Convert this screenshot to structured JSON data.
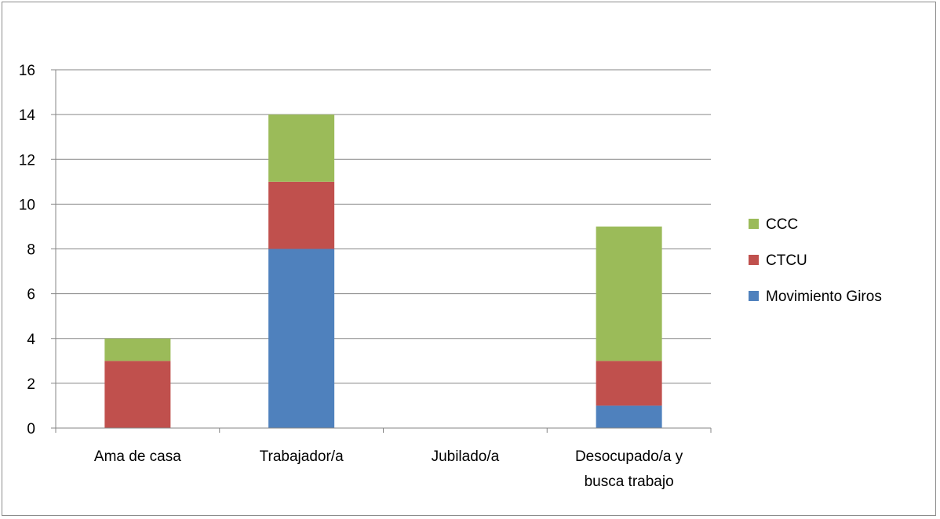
{
  "chart_data": {
    "type": "bar",
    "stacked": true,
    "categories": [
      [
        "Ama de casa"
      ],
      [
        "Trabajador/a"
      ],
      [
        "Jubilado/a"
      ],
      [
        "Desocupado/a y",
        "busca trabajo"
      ]
    ],
    "series": [
      {
        "name": "Movimiento Giros",
        "color": "#4f81bd",
        "values": [
          0,
          8,
          0,
          1
        ]
      },
      {
        "name": "CTCU",
        "color": "#c0504d",
        "values": [
          3,
          3,
          0,
          2
        ]
      },
      {
        "name": "CCC",
        "color": "#9bbb59",
        "values": [
          1,
          3,
          0,
          6
        ]
      }
    ],
    "ylim": [
      0,
      16
    ],
    "yticks": [
      0,
      2,
      4,
      6,
      8,
      10,
      12,
      14,
      16
    ],
    "grid": true,
    "legend": "right"
  }
}
